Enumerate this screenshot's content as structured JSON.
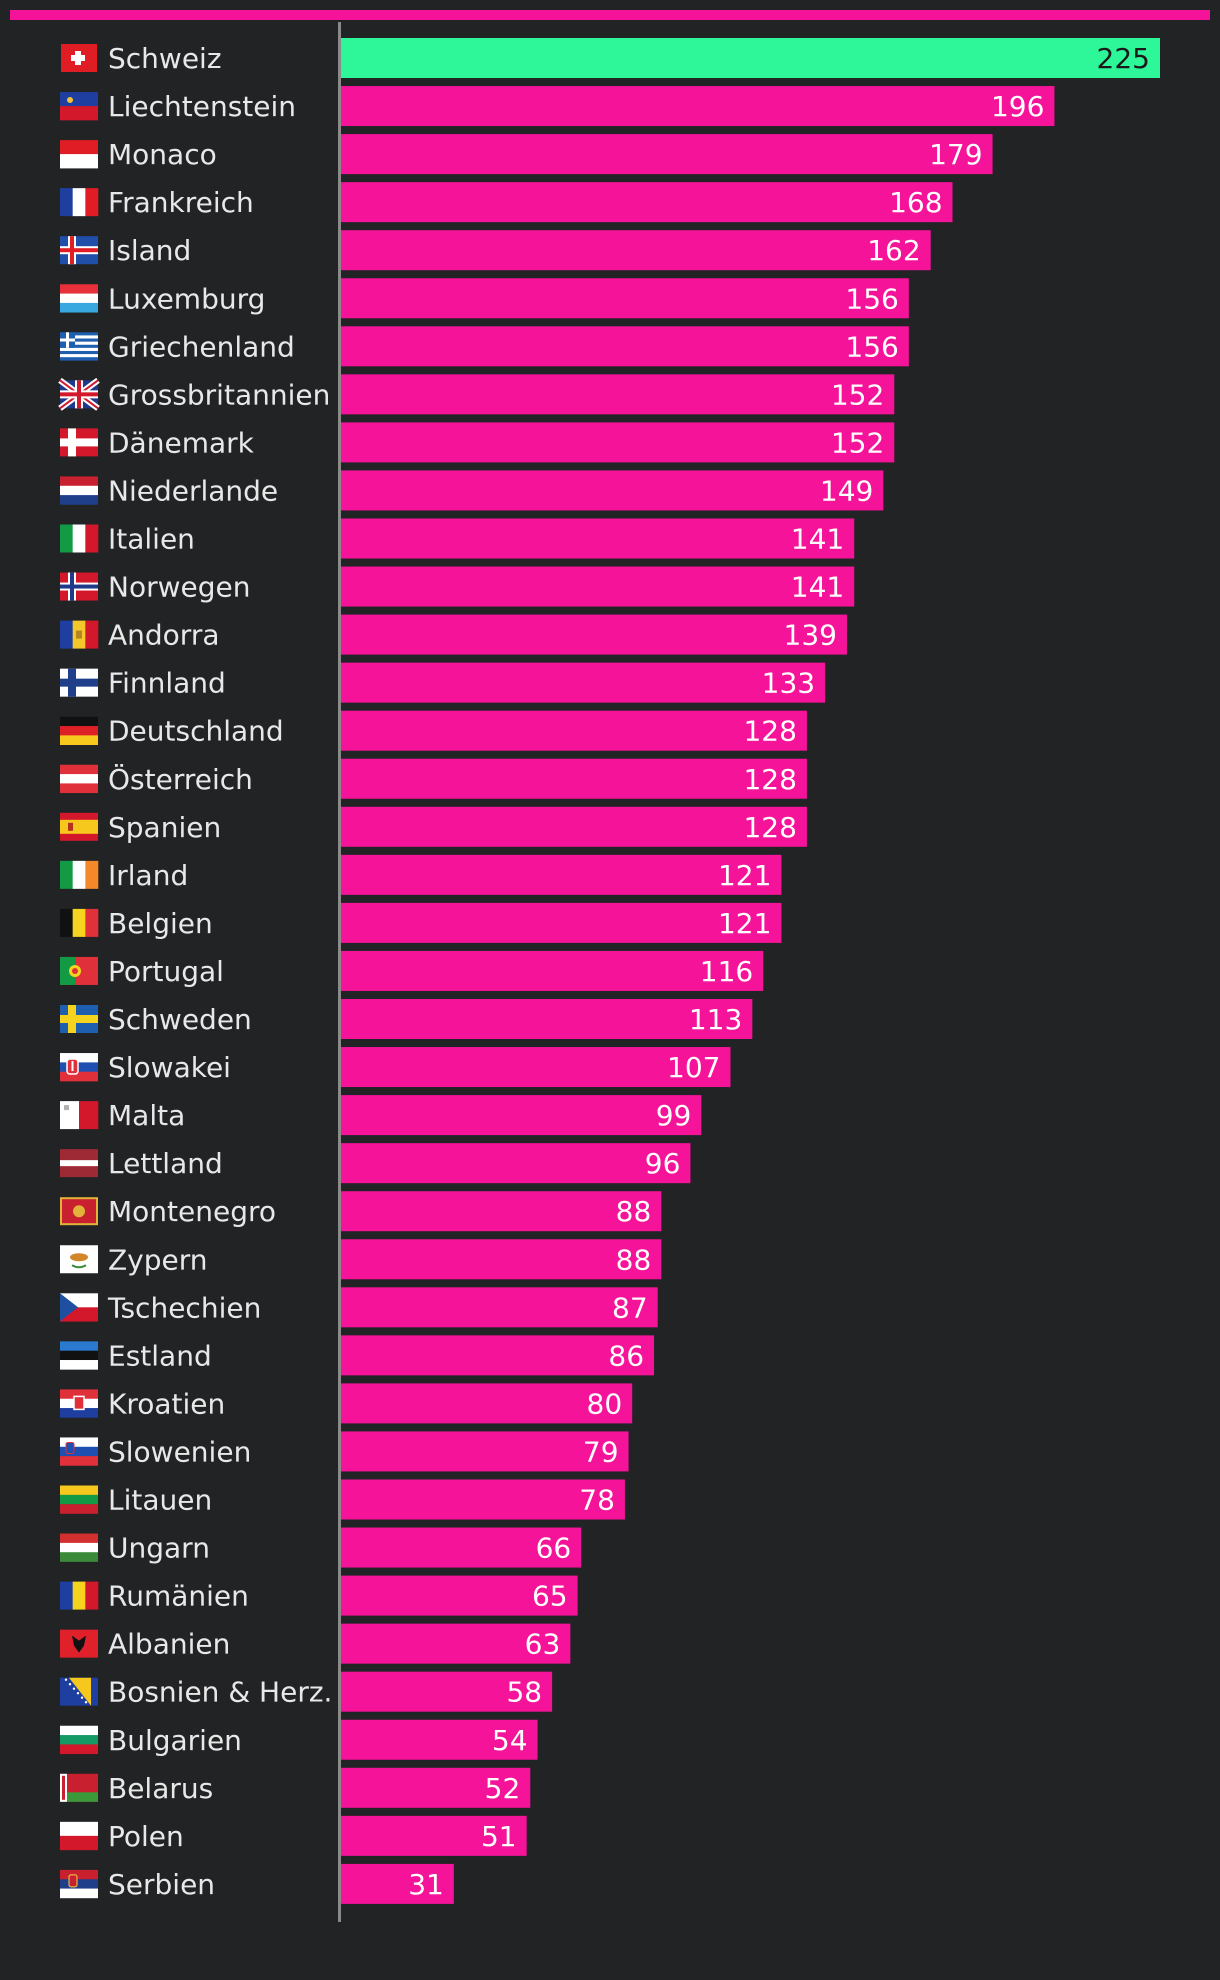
{
  "colors": {
    "background": "#222325",
    "bar": "#f5139a",
    "highlight_bar": "#2df799",
    "top_rule": "#f5139a",
    "axis_line": "#8a8a8a",
    "label_text": "#e8e8e8",
    "value_text": "#ffffff",
    "highlight_value_text": "#1a1a1a"
  },
  "chart_data": {
    "type": "bar",
    "orientation": "horizontal",
    "title": "",
    "xlabel": "",
    "ylabel": "",
    "xlim": [
      0,
      225
    ],
    "grid": false,
    "highlight": "Schweiz",
    "categories": [
      "Schweiz",
      "Liechtenstein",
      "Monaco",
      "Frankreich",
      "Island",
      "Luxemburg",
      "Griechenland",
      "Grossbritannien",
      "Dänemark",
      "Niederlande",
      "Italien",
      "Norwegen",
      "Andorra",
      "Finnland",
      "Deutschland",
      "Österreich",
      "Spanien",
      "Irland",
      "Belgien",
      "Portugal",
      "Schweden",
      "Slowakei",
      "Malta",
      "Lettland",
      "Montenegro",
      "Zypern",
      "Tschechien",
      "Estland",
      "Kroatien",
      "Slowenien",
      "Litauen",
      "Ungarn",
      "Rumänien",
      "Albanien",
      "Bosnien & Herz.",
      "Bulgarien",
      "Belarus",
      "Polen",
      "Serbien"
    ],
    "values": [
      225,
      196,
      179,
      168,
      162,
      156,
      156,
      152,
      152,
      149,
      141,
      141,
      139,
      133,
      128,
      128,
      128,
      121,
      121,
      116,
      113,
      107,
      99,
      96,
      88,
      88,
      87,
      86,
      80,
      79,
      78,
      66,
      65,
      63,
      58,
      54,
      52,
      51,
      31
    ],
    "flag_icons": [
      "flag-ch-icon",
      "flag-li-icon",
      "flag-mc-icon",
      "flag-fr-icon",
      "flag-is-icon",
      "flag-lu-icon",
      "flag-gr-icon",
      "flag-gb-icon",
      "flag-dk-icon",
      "flag-nl-icon",
      "flag-it-icon",
      "flag-no-icon",
      "flag-ad-icon",
      "flag-fi-icon",
      "flag-de-icon",
      "flag-at-icon",
      "flag-es-icon",
      "flag-ie-icon",
      "flag-be-icon",
      "flag-pt-icon",
      "flag-se-icon",
      "flag-sk-icon",
      "flag-mt-icon",
      "flag-lv-icon",
      "flag-me-icon",
      "flag-cy-icon",
      "flag-cz-icon",
      "flag-ee-icon",
      "flag-hr-icon",
      "flag-si-icon",
      "flag-lt-icon",
      "flag-hu-icon",
      "flag-ro-icon",
      "flag-al-icon",
      "flag-ba-icon",
      "flag-bg-icon",
      "flag-by-icon",
      "flag-pl-icon",
      "flag-rs-icon"
    ]
  }
}
